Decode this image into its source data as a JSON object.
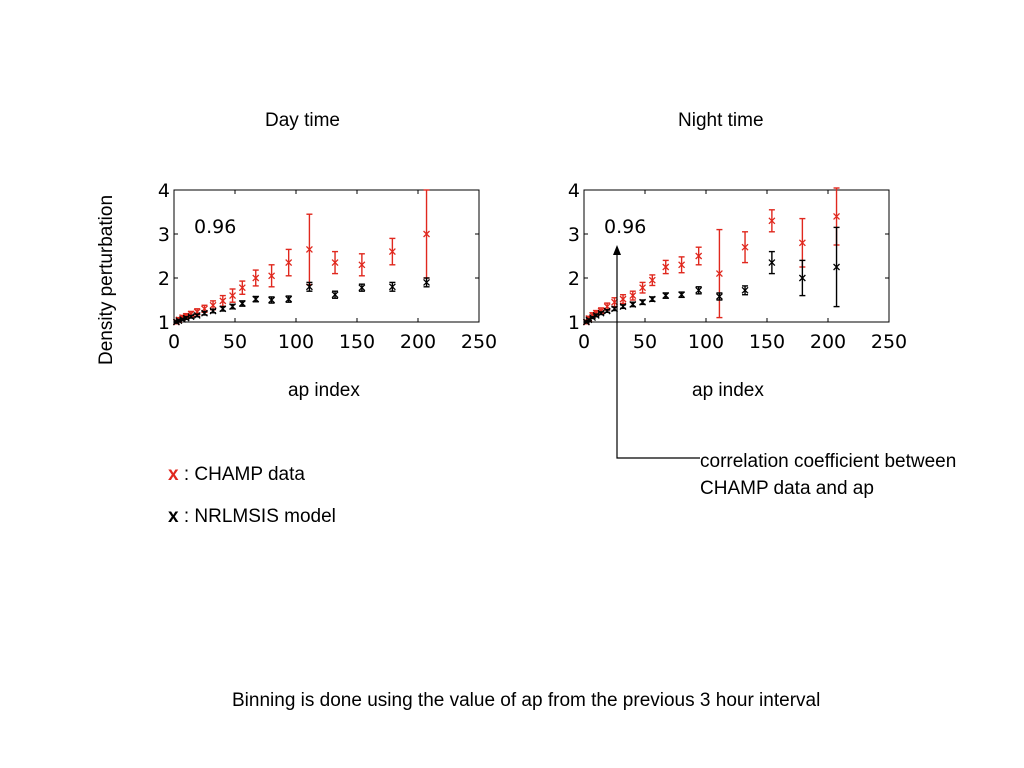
{
  "ylabel": "Density perturbation",
  "colors": {
    "champ": "#e0281e",
    "model": "#000000",
    "legend_champ": "#e0281e"
  },
  "legend": {
    "champ_marker": "x",
    "champ_label": " : CHAMP data",
    "model_marker": "x",
    "model_label": " : NRLMSIS model"
  },
  "annotation": "correlation coefficient between CHAMP data and ap",
  "footer": "Binning is done using the value of ap from the previous 3 hour interval",
  "chart_data": [
    {
      "type": "scatter",
      "title": "Day time",
      "xlabel": "ap index",
      "ylabel": "Density perturbation",
      "corr_label": "0.96",
      "xlim": [
        0,
        250
      ],
      "ylim": [
        1,
        4
      ],
      "xticks": [
        "0",
        "50",
        "100",
        "150",
        "200",
        "250"
      ],
      "yticks": [
        "1",
        "2",
        "3",
        "4"
      ],
      "series": [
        {
          "name": "CHAMP data",
          "x": [
            2,
            4,
            7,
            10,
            14,
            19,
            25,
            32,
            40,
            48,
            56,
            67,
            80,
            94,
            111,
            132,
            154,
            179,
            207
          ],
          "y": [
            1.0,
            1.05,
            1.1,
            1.13,
            1.18,
            1.23,
            1.3,
            1.38,
            1.48,
            1.6,
            1.78,
            2.0,
            2.05,
            2.35,
            2.65,
            2.35,
            2.3,
            2.6,
            3.0
          ],
          "err": [
            0.04,
            0.05,
            0.05,
            0.06,
            0.06,
            0.07,
            0.08,
            0.1,
            0.12,
            0.15,
            0.15,
            0.18,
            0.25,
            0.3,
            0.8,
            0.25,
            0.25,
            0.3,
            1.0
          ]
        },
        {
          "name": "NRLMSIS model",
          "x": [
            2,
            4,
            7,
            10,
            14,
            19,
            25,
            32,
            40,
            48,
            56,
            67,
            80,
            94,
            111,
            132,
            154,
            179,
            207
          ],
          "y": [
            1.0,
            1.03,
            1.06,
            1.09,
            1.12,
            1.15,
            1.2,
            1.25,
            1.3,
            1.35,
            1.42,
            1.52,
            1.5,
            1.52,
            1.8,
            1.62,
            1.78,
            1.8,
            1.9
          ],
          "err": [
            0.02,
            0.02,
            0.02,
            0.03,
            0.03,
            0.03,
            0.04,
            0.04,
            0.05,
            0.05,
            0.06,
            0.06,
            0.07,
            0.07,
            0.1,
            0.08,
            0.08,
            0.1,
            0.1
          ]
        }
      ]
    },
    {
      "type": "scatter",
      "title": "Night time",
      "xlabel": "ap index",
      "ylabel": "",
      "corr_label": "0.96",
      "xlim": [
        0,
        250
      ],
      "ylim": [
        1,
        4
      ],
      "xticks": [
        "0",
        "50",
        "100",
        "150",
        "200",
        "250"
      ],
      "yticks": [
        "1",
        "2",
        "3",
        "4"
      ],
      "series": [
        {
          "name": "CHAMP data",
          "x": [
            2,
            4,
            7,
            10,
            14,
            19,
            25,
            32,
            40,
            48,
            56,
            67,
            80,
            94,
            111,
            132,
            154,
            179,
            207
          ],
          "y": [
            1.0,
            1.08,
            1.15,
            1.2,
            1.25,
            1.35,
            1.45,
            1.52,
            1.6,
            1.78,
            1.95,
            2.25,
            2.3,
            2.5,
            2.1,
            2.7,
            3.3,
            2.8,
            3.4
          ],
          "err": [
            0.04,
            0.05,
            0.06,
            0.06,
            0.07,
            0.08,
            0.1,
            0.1,
            0.1,
            0.12,
            0.12,
            0.15,
            0.18,
            0.2,
            1.0,
            0.35,
            0.25,
            0.55,
            0.65
          ]
        },
        {
          "name": "NRLMSIS model",
          "x": [
            2,
            4,
            7,
            10,
            14,
            19,
            25,
            32,
            40,
            48,
            56,
            67,
            80,
            94,
            111,
            132,
            154,
            179,
            207
          ],
          "y": [
            1.0,
            1.05,
            1.1,
            1.15,
            1.2,
            1.25,
            1.3,
            1.35,
            1.4,
            1.45,
            1.52,
            1.6,
            1.62,
            1.72,
            1.58,
            1.72,
            2.35,
            2.0,
            2.25
          ],
          "err": [
            0.02,
            0.02,
            0.02,
            0.03,
            0.03,
            0.03,
            0.04,
            0.04,
            0.05,
            0.05,
            0.05,
            0.06,
            0.06,
            0.08,
            0.08,
            0.1,
            0.25,
            0.4,
            0.9
          ]
        }
      ]
    }
  ]
}
